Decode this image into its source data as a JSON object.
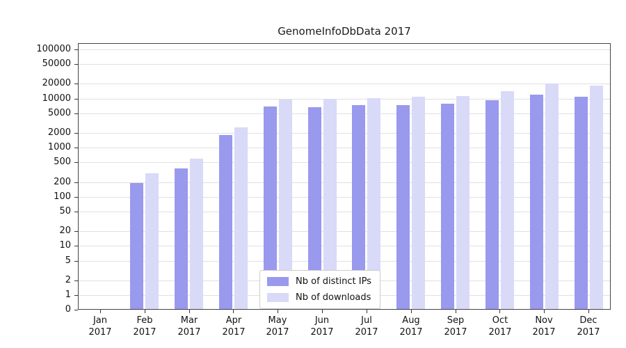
{
  "title": "GenomeInfoDbData 2017",
  "chart_data": {
    "type": "bar",
    "title": "GenomeInfoDbData 2017",
    "y_scale": "log",
    "grid": "horizontal",
    "legend_position": "bottom-center-inside",
    "y_ticks": [
      0,
      1,
      2,
      5,
      10,
      20,
      50,
      100,
      200,
      500,
      1000,
      2000,
      5000,
      10000,
      20000,
      50000,
      100000
    ],
    "x_year": "2017",
    "categories": [
      "Jan 2017",
      "Feb 2017",
      "Mar 2017",
      "Apr 2017",
      "May 2017",
      "Jun 2017",
      "Jul 2017",
      "Aug 2017",
      "Sep 2017",
      "Oct 2017",
      "Nov 2017",
      "Dec 2017"
    ],
    "month_labels": [
      "Jan",
      "Feb",
      "Mar",
      "Apr",
      "May",
      "Jun",
      "Jul",
      "Aug",
      "Sep",
      "Oct",
      "Nov",
      "Dec"
    ],
    "series": [
      {
        "name": "Nb of distinct IPs",
        "color": "#9999ee",
        "values": [
          0,
          190,
          380,
          1800,
          6800,
          6700,
          7300,
          7400,
          7800,
          9200,
          12000,
          10800
        ]
      },
      {
        "name": "Nb of downloads",
        "color": "#d9d9f8",
        "values": [
          0,
          300,
          600,
          2600,
          9500,
          9800,
          10300,
          11000,
          11200,
          14000,
          20000,
          18500
        ]
      }
    ]
  }
}
